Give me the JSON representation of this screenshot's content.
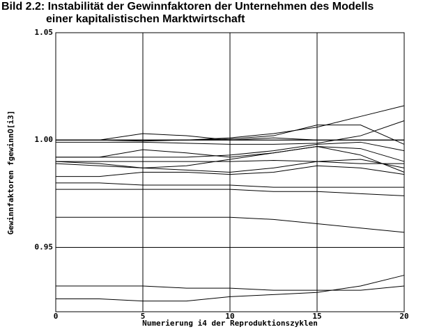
{
  "chart_data": {
    "type": "line",
    "title": "Bild 2.2: Instabilität der Gewinnfaktoren der Unternehmen des Modells",
    "subtitle": "einer kapitalistischen Marktwirtschaft",
    "xlabel": "Numerierung i4 der Reproduktionszyklen",
    "ylabel": "Gewinnfaktoren fgewinnO[i3]",
    "color": "#000000",
    "grid": true,
    "xlim": [
      0,
      20
    ],
    "xticks": [
      0,
      5,
      10,
      15,
      20
    ],
    "ylim": [
      0.92,
      1.05
    ],
    "yticks": [
      0.95,
      {
        "value": 1,
        "label": "1.00"
      },
      1.05
    ],
    "x": [
      0,
      2.5,
      5,
      7.5,
      10,
      12.5,
      15,
      17.5,
      20
    ],
    "series": [
      {
        "values": [
          1.0,
          1.0,
          1.003,
          1.002,
          1.0,
          1.001,
          1.0,
          1.0,
          1.0
        ]
      },
      {
        "values": [
          1.0,
          1.0,
          1.0,
          1.0,
          1.001,
          1.003,
          1.006,
          1.011,
          1.016
        ]
      },
      {
        "values": [
          1.0,
          1.0,
          0.9995,
          1.0,
          1.0005,
          1.002,
          1.007,
          1.007,
          0.998
        ]
      },
      {
        "values": [
          0.999,
          0.999,
          0.999,
          0.9985,
          0.998,
          0.998,
          0.9985,
          1.002,
          1.009
        ]
      },
      {
        "values": [
          0.992,
          0.992,
          0.9955,
          0.994,
          0.992,
          0.994,
          0.997,
          0.996,
          0.99
        ]
      },
      {
        "values": [
          0.992,
          0.992,
          0.992,
          0.992,
          0.993,
          0.995,
          0.998,
          0.999,
          0.995
        ]
      },
      {
        "values": [
          0.99,
          0.989,
          0.987,
          0.988,
          0.991,
          0.994,
          0.997,
          0.993,
          0.985
        ]
      },
      {
        "values": [
          0.989,
          0.988,
          0.987,
          0.986,
          0.985,
          0.987,
          0.99,
          0.991,
          0.987
        ]
      },
      {
        "values": [
          0.983,
          0.983,
          0.985,
          0.985,
          0.984,
          0.985,
          0.988,
          0.987,
          0.984
        ]
      },
      {
        "values": [
          0.98,
          0.98,
          0.979,
          0.979,
          0.979,
          0.978,
          0.978,
          0.978,
          0.978
        ]
      },
      {
        "values": [
          0.977,
          0.977,
          0.977,
          0.977,
          0.977,
          0.976,
          0.976,
          0.975,
          0.974
        ]
      },
      {
        "values": [
          0.964,
          0.964,
          0.964,
          0.964,
          0.964,
          0.963,
          0.961,
          0.959,
          0.957
        ]
      },
      {
        "values": [
          0.932,
          0.932,
          0.932,
          0.931,
          0.931,
          0.93,
          0.93,
          0.93,
          0.932
        ]
      },
      {
        "values": [
          0.926,
          0.926,
          0.925,
          0.925,
          0.927,
          0.928,
          0.929,
          0.932,
          0.937
        ]
      },
      {
        "values": [
          1.0,
          1.0,
          1.0,
          1.0,
          1.0,
          1.0,
          1.0,
          1.0,
          1.0
        ]
      },
      {
        "values": [
          0.99,
          0.99,
          0.99,
          0.99,
          0.99,
          0.9905,
          0.99,
          0.989,
          0.989
        ]
      }
    ]
  }
}
